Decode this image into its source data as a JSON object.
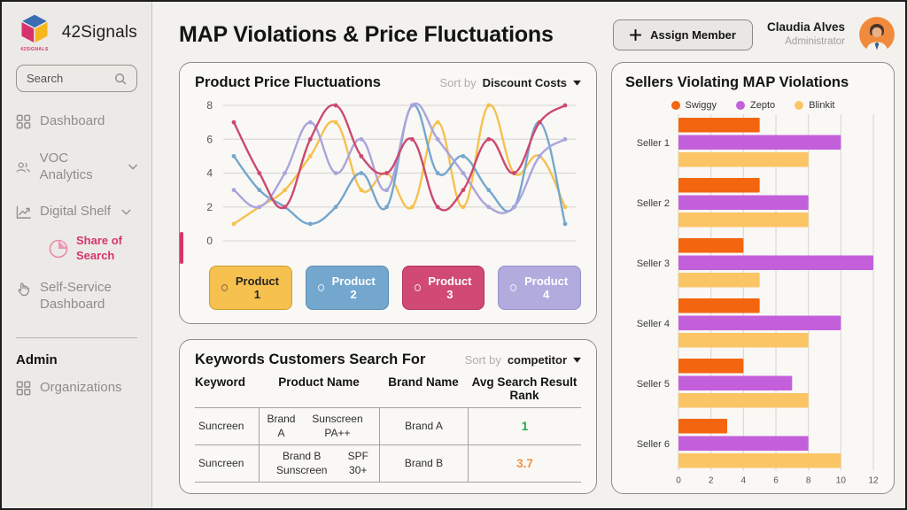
{
  "sidebar": {
    "brand": "42Signals",
    "brand_sub": "42SIGNALS",
    "search_placeholder": "Search",
    "items": {
      "dashboard": "Dashboard",
      "voc": "VOC Analytics",
      "digital_shelf": "Digital Shelf",
      "share_of_search_line1": "Share of",
      "share_of_search_line2": "Search",
      "self_service_line1": "Self-Service",
      "self_service_line2": "Dashboard"
    },
    "section_admin": "Admin",
    "organizations": "Organizations"
  },
  "header": {
    "title": "MAP Violations & Price Fluctuations",
    "assign_button": "Assign Member",
    "user_name": "Claudia Alves",
    "user_role": "Administrator"
  },
  "price_card": {
    "title": "Product Price Fluctuations",
    "sort_label": "Sort by",
    "sort_value": "Discount Costs",
    "legend_buttons": [
      {
        "label": "Product 1",
        "bg": "#f6c14f",
        "border": "#cf9c2c",
        "text": "#262626",
        "light": false
      },
      {
        "label": "Product 2",
        "bg": "#74a7ce",
        "border": "#5a8cb4",
        "text": "#ffffff",
        "light": true
      },
      {
        "label": "Product 3",
        "bg": "#d04a73",
        "border": "#b23459",
        "text": "#ffffff",
        "light": true
      },
      {
        "label": "Product 4",
        "bg": "#b2abde",
        "border": "#968ecb",
        "text": "#ffffff",
        "light": true
      }
    ]
  },
  "keywords_card": {
    "title": "Keywords Customers Search For",
    "sort_label": "Sort by",
    "sort_value": "competitor",
    "columns": [
      "Keyword",
      "Product Name",
      "Brand Name",
      "Avg Search Result Rank"
    ],
    "rows": [
      {
        "keyword": "Suncreen",
        "product": "Brand A\nSunscreen PA++",
        "brand": "Brand A",
        "rank": "1",
        "rank_color": "#27a348"
      },
      {
        "keyword": "Suncreen",
        "product": "Brand B Sunscreen\nSPF 30+",
        "brand": "Brand B",
        "rank": "3.7",
        "rank_color": "#f5913e"
      }
    ]
  },
  "sellers_card": {
    "title": "Sellers Violating MAP Violations"
  },
  "chart_data": [
    {
      "type": "line",
      "title": "Product Price Fluctuations",
      "x": [
        1,
        2,
        3,
        4,
        5,
        6,
        7,
        8,
        9,
        10,
        11,
        12,
        13,
        14
      ],
      "series": [
        {
          "name": "Product 1",
          "color": "#f6c14f",
          "values": [
            1,
            2,
            3,
            5,
            7,
            3,
            4,
            2,
            7,
            2,
            8,
            4,
            5,
            2
          ]
        },
        {
          "name": "Product 2",
          "color": "#74a7ce",
          "values": [
            5,
            3,
            2,
            1,
            2,
            4,
            2,
            8,
            4,
            5,
            3,
            2,
            7,
            1
          ]
        },
        {
          "name": "Product 4",
          "color": "#aaa4dd",
          "values": [
            3,
            2,
            4,
            7,
            4,
            6,
            3,
            8,
            6,
            4,
            2,
            2,
            5,
            6
          ]
        },
        {
          "name": "Product 3",
          "color": "#cb4a70",
          "values": [
            7,
            4,
            2,
            6,
            8,
            5,
            4,
            6,
            2,
            3,
            6,
            4,
            7,
            8
          ]
        }
      ],
      "ylim": [
        0,
        8
      ],
      "yticks": [
        0,
        2,
        4,
        6,
        8
      ],
      "grid": true,
      "legend_position": "bottom-buttons"
    },
    {
      "type": "bar",
      "orientation": "horizontal",
      "title": "Sellers Violating MAP Violations",
      "categories": [
        "Seller 1",
        "Seller 2",
        "Seller 3",
        "Seller 4",
        "Seller 5",
        "Seller 6"
      ],
      "series": [
        {
          "name": "Swiggy",
          "color": "#f3650f",
          "values": [
            5,
            5,
            4,
            5,
            4,
            3
          ]
        },
        {
          "name": "Zepto",
          "color": "#c45fdb",
          "values": [
            10,
            8,
            12,
            10,
            7,
            8
          ]
        },
        {
          "name": "Blinkit",
          "color": "#fbc566",
          "values": [
            8,
            8,
            5,
            8,
            8,
            10
          ]
        }
      ],
      "xlim": [
        0,
        12
      ],
      "xticks": [
        0,
        2,
        4,
        6,
        8,
        10,
        12
      ],
      "grid": true,
      "legend_position": "top"
    }
  ],
  "colors": {
    "accent_pink": "#d4356f",
    "grid": "#dcdad6",
    "axis_text": "#55534f"
  }
}
